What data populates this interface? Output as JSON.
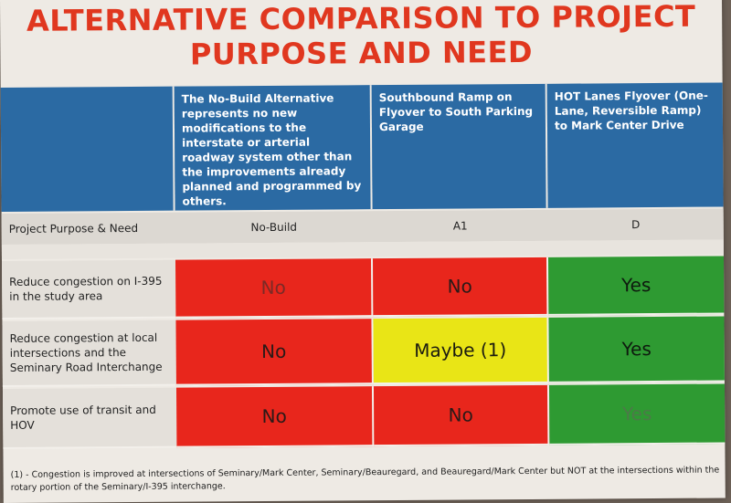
{
  "title_line1": "ALTERNATIVE COMPARISON TO PROJECT",
  "title_line2": "PURPOSE AND NEED",
  "columns": [
    {
      "header": "The No-Build Alternative represents no new modifications to the interstate or arterial roadway system other than the improvements already planned and programmed by others.",
      "id": "No-Build"
    },
    {
      "header": "Southbound Ramp on Flyover to South Parking Garage",
      "id": "A1"
    },
    {
      "header": "HOT Lanes Flyover (One-Lane, Reversible Ramp) to Mark Center Drive",
      "id": "D"
    }
  ],
  "id_row_label": "Project Purpose & Need",
  "rows": [
    {
      "label": "Reduce congestion on I-395 in the study area",
      "values": [
        "No",
        "No",
        "Yes"
      ],
      "colors": [
        "red",
        "red",
        "green"
      ]
    },
    {
      "label": "Reduce congestion at local intersections and the Seminary Road Interchange",
      "values": [
        "No",
        "Maybe (1)",
        "Yes"
      ],
      "colors": [
        "red",
        "yellow",
        "green"
      ]
    },
    {
      "label": "Promote use of transit and HOV",
      "values": [
        "No",
        "No",
        "Yes"
      ],
      "colors": [
        "red",
        "red",
        "green"
      ]
    }
  ],
  "footnote": "(1) - Congestion is improved at intersections of Seminary/Mark Center, Seminary/Beauregard, and Beauregard/Mark Center but NOT at the intersections within the rotary portion of the Seminary/I-395 interchange.",
  "colors": {
    "title": "#e0371f",
    "header_blue": "#2b6aa3",
    "red": "#e8261c",
    "yellow": "#e9e516",
    "green": "#2e9a32"
  }
}
